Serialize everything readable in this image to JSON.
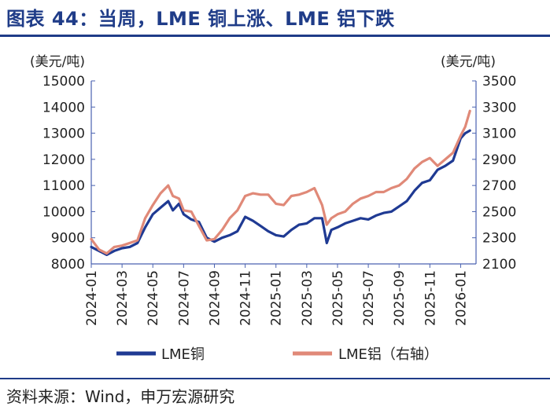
{
  "header": {
    "title": "图表 44：当周，LME 铜上涨、LME 铝下跌"
  },
  "footer": {
    "source": "资料来源：Wind，申万宏源研究"
  },
  "chart_data": {
    "type": "line",
    "title": "图表 44：当周，LME 铜上涨、LME 铝下跌",
    "x_ticks": [
      "2024-01",
      "2024-03",
      "2024-05",
      "2024-07",
      "2024-09",
      "2024-11",
      "2025-01",
      "2025-03",
      "2025-05",
      "2025-07",
      "2025-09",
      "2025-11",
      "2026-01"
    ],
    "y_left": {
      "label": "(美元/吨)",
      "min": 8000,
      "max": 15000,
      "ticks": [
        8000,
        9000,
        10000,
        11000,
        12000,
        13000,
        14000,
        15000
      ]
    },
    "y_right": {
      "label": "(美元/吨)",
      "min": 2100,
      "max": 3500,
      "ticks": [
        2100,
        2300,
        2500,
        2700,
        2900,
        3100,
        3300,
        3500
      ]
    },
    "series": [
      {
        "name": "LME铜",
        "axis": "left",
        "color": "#1f3a93",
        "x": [
          0,
          0.5,
          1,
          1.5,
          2,
          2.5,
          3,
          3.5,
          4,
          4.5,
          5,
          5.3,
          5.7,
          6,
          6.5,
          7,
          7.5,
          8,
          8.5,
          9,
          9.5,
          10,
          10.5,
          11,
          11.5,
          12,
          12.5,
          13,
          13.5,
          14,
          14.5,
          15,
          15.3,
          15.6,
          16,
          16.5,
          17,
          17.5,
          18,
          18.5,
          19,
          19.5,
          20,
          20.5,
          21,
          21.5,
          22,
          22.5,
          23,
          23.5,
          24,
          24.3,
          24.6
        ],
        "values": [
          8650,
          8500,
          8350,
          8500,
          8600,
          8650,
          8800,
          9400,
          9900,
          10150,
          10400,
          10050,
          10300,
          9900,
          9700,
          9600,
          9000,
          8850,
          9000,
          9100,
          9250,
          9800,
          9650,
          9450,
          9250,
          9100,
          9050,
          9300,
          9500,
          9550,
          9750,
          9750,
          8800,
          9300,
          9400,
          9550,
          9650,
          9750,
          9700,
          9850,
          9950,
          10000,
          10200,
          10400,
          10800,
          11100,
          11200,
          11600,
          11750,
          11950,
          12800,
          13000,
          13100
        ]
      },
      {
        "name": "LME铝（右轴）",
        "axis": "right",
        "color": "#e08978",
        "x": [
          0,
          0.5,
          1,
          1.5,
          2,
          2.5,
          3,
          3.5,
          4,
          4.5,
          5,
          5.3,
          5.7,
          6,
          6.5,
          7,
          7.5,
          8,
          8.5,
          9,
          9.5,
          10,
          10.5,
          11,
          11.5,
          12,
          12.5,
          13,
          13.5,
          14,
          14.5,
          15,
          15.3,
          15.6,
          16,
          16.5,
          17,
          17.5,
          18,
          18.5,
          19,
          19.5,
          20,
          20.5,
          21,
          21.5,
          22,
          22.5,
          23,
          23.5,
          24,
          24.3,
          24.6
        ],
        "values": [
          2290,
          2210,
          2180,
          2230,
          2240,
          2260,
          2280,
          2450,
          2550,
          2640,
          2700,
          2620,
          2600,
          2510,
          2500,
          2390,
          2280,
          2290,
          2360,
          2450,
          2510,
          2620,
          2640,
          2630,
          2630,
          2560,
          2550,
          2620,
          2630,
          2650,
          2680,
          2550,
          2400,
          2450,
          2480,
          2500,
          2560,
          2600,
          2620,
          2650,
          2650,
          2680,
          2700,
          2750,
          2830,
          2880,
          2910,
          2850,
          2900,
          2950,
          3080,
          3150,
          3270
        ]
      }
    ]
  },
  "legend": {
    "copper": "LME铜",
    "aluminum": "LME铝（右轴）"
  }
}
